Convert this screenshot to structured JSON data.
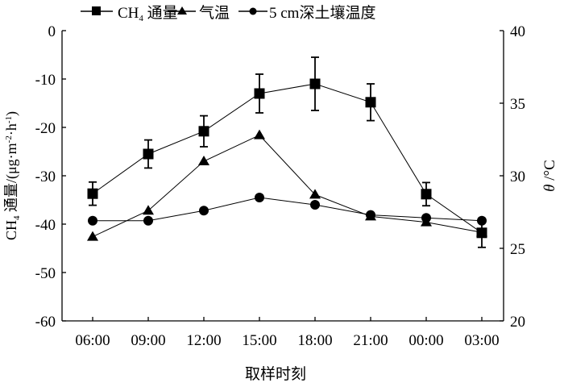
{
  "chart_data": {
    "type": "line",
    "title": "",
    "xlabel": "取样时刻",
    "ylabel": "CH4 通量/(μg·m-2·h-1)",
    "ylabel_parts": {
      "a": "CH",
      "sub": "4",
      "b": " 通量/(μg·m",
      "sup1": "-2",
      "c": "·h",
      "sup2": "-1",
      "d": ")"
    },
    "y2label": "θ /°C",
    "y2label_parts": {
      "theta": "θ",
      "unit": " /°C"
    },
    "categories": [
      "06:00",
      "09:00",
      "12:00",
      "15:00",
      "18:00",
      "21:00",
      "00:00",
      "03:00"
    ],
    "ylim": [
      -60,
      0
    ],
    "yticks": [
      0,
      -10,
      -20,
      -30,
      -40,
      -50,
      -60
    ],
    "y2lim": [
      20,
      40
    ],
    "y2ticks": [
      40,
      35,
      30,
      25,
      20
    ],
    "grid": false,
    "legend_position": "top",
    "series": [
      {
        "name": "CH4 通量",
        "name_parts": {
          "a": "CH",
          "sub": "4",
          "b": " 通量"
        },
        "axis": "left",
        "marker": "square",
        "values": [
          -33.7,
          -25.5,
          -20.8,
          -13.0,
          -11.0,
          -14.8,
          -33.8,
          -41.8
        ],
        "errors": [
          2.4,
          2.9,
          3.2,
          4.0,
          5.5,
          3.8,
          2.4,
          3.0
        ]
      },
      {
        "name": "气温",
        "axis": "right",
        "marker": "triangle",
        "values": [
          25.8,
          27.6,
          31.0,
          32.8,
          28.7,
          27.2,
          26.8,
          26.1
        ]
      },
      {
        "name": "5 cm深土壤温度",
        "axis": "right",
        "marker": "circle",
        "values": [
          26.9,
          26.9,
          27.6,
          28.5,
          28.0,
          27.3,
          27.1,
          26.9
        ]
      }
    ]
  }
}
